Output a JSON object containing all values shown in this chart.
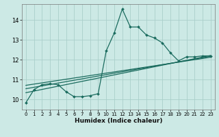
{
  "xlabel": "Humidex (Indice chaleur)",
  "bg_color": "#cce9e5",
  "line_color": "#1a6b5e",
  "grid_color": "#aacfca",
  "xlim": [
    -0.5,
    23.5
  ],
  "ylim": [
    9.5,
    14.8
  ],
  "xticks": [
    0,
    1,
    2,
    3,
    4,
    5,
    6,
    7,
    8,
    9,
    10,
    11,
    12,
    13,
    14,
    15,
    16,
    17,
    18,
    19,
    20,
    21,
    22,
    23
  ],
  "yticks": [
    10,
    11,
    12,
    13,
    14
  ],
  "main_line_x": [
    0,
    1,
    2,
    3,
    4,
    5,
    6,
    7,
    8,
    9,
    10,
    11,
    12,
    13,
    14,
    15,
    16,
    17,
    18,
    19,
    20,
    21,
    22,
    23
  ],
  "main_line_y": [
    9.85,
    10.5,
    10.75,
    10.8,
    10.75,
    10.4,
    10.15,
    10.15,
    10.2,
    10.3,
    12.45,
    13.35,
    14.55,
    13.65,
    13.65,
    13.25,
    13.1,
    12.85,
    12.35,
    11.95,
    12.15,
    12.15,
    12.2,
    12.2
  ],
  "reg_lines": [
    {
      "x": [
        0,
        23
      ],
      "y": [
        10.35,
        12.22
      ]
    },
    {
      "x": [
        0,
        23
      ],
      "y": [
        10.55,
        12.18
      ]
    },
    {
      "x": [
        0,
        23
      ],
      "y": [
        10.72,
        12.13
      ]
    }
  ]
}
